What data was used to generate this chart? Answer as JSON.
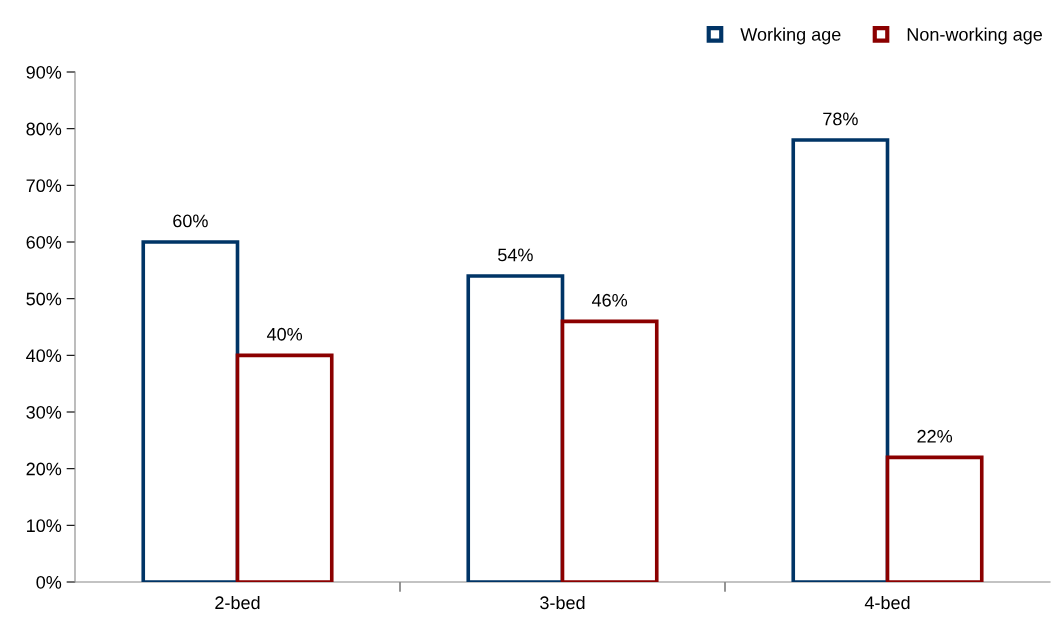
{
  "chart_data": {
    "type": "bar",
    "categories": [
      "2-bed",
      "3-bed",
      "4-bed"
    ],
    "series": [
      {
        "name": "Working age",
        "color": "#003466",
        "values": [
          60,
          54,
          78
        ],
        "value_labels": [
          "60%",
          "54%",
          "78%"
        ]
      },
      {
        "name": "Non-working age",
        "color": "#8b0000",
        "values": [
          40,
          46,
          22
        ],
        "value_labels": [
          "40%",
          "46%",
          "22%"
        ]
      }
    ],
    "ylim": [
      0,
      90
    ],
    "yticks": [
      {
        "value": 0,
        "label": "0%"
      },
      {
        "value": 10,
        "label": "10%"
      },
      {
        "value": 20,
        "label": "20%"
      },
      {
        "value": 30,
        "label": "30%"
      },
      {
        "value": 40,
        "label": "40%"
      },
      {
        "value": 50,
        "label": "50%"
      },
      {
        "value": 60,
        "label": "60%"
      },
      {
        "value": 70,
        "label": "70%"
      },
      {
        "value": 80,
        "label": "80%"
      },
      {
        "value": 90,
        "label": "90%"
      }
    ],
    "grid": false,
    "legend": "top right"
  }
}
